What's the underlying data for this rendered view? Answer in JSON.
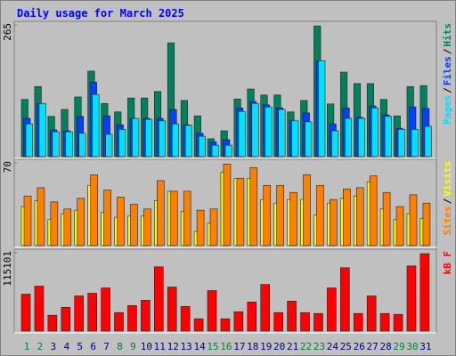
{
  "title": "Daily usage for March 2025",
  "categories": [
    "1",
    "2",
    "3",
    "4",
    "5",
    "6",
    "7",
    "8",
    "9",
    "10",
    "11",
    "12",
    "13",
    "14",
    "15",
    "16",
    "17",
    "18",
    "19",
    "20",
    "21",
    "22",
    "23",
    "24",
    "25",
    "26",
    "27",
    "28",
    "29",
    "30",
    "31"
  ],
  "weekend_days": [
    1,
    2,
    8,
    9,
    15,
    16,
    22,
    23,
    29,
    30
  ],
  "weekend_color": "#008040",
  "weekday_color": "#000080",
  "legend_separator": "/",
  "chart_data": [
    {
      "type": "bar",
      "ylim": [
        0,
        265
      ],
      "yticks": [
        265
      ],
      "series": [
        {
          "name": "Hits",
          "color": "#00805c",
          "values": [
            115,
            141,
            81,
            95,
            120,
            172,
            107,
            90,
            118,
            118,
            131,
            229,
            113,
            82,
            36,
            52,
            116,
            136,
            124,
            124,
            90,
            113,
            263,
            106,
            170,
            147,
            147,
            115,
            82,
            141,
            143
          ]
        },
        {
          "name": "Files",
          "color": "#0040ff",
          "values": [
            77,
            107,
            54,
            52,
            81,
            150,
            82,
            64,
            77,
            77,
            77,
            95,
            64,
            47,
            30,
            34,
            98,
            111,
            104,
            98,
            72,
            88,
            193,
            66,
            98,
            79,
            102,
            84,
            57,
            100,
            97
          ]
        },
        {
          "name": "Pages",
          "color": "#00e0ff",
          "values": [
            66,
            107,
            50,
            50,
            47,
            125,
            45,
            55,
            77,
            75,
            72,
            66,
            63,
            41,
            23,
            23,
            91,
            107,
            100,
            95,
            72,
            70,
            193,
            52,
            77,
            77,
            98,
            81,
            55,
            55,
            61
          ]
        }
      ]
    },
    {
      "type": "bar",
      "ylim": [
        0,
        70
      ],
      "yticks": [
        70
      ],
      "series": [
        {
          "name": "Visits",
          "color": "#ffff00",
          "values": [
            33,
            38,
            22,
            27,
            30,
            51,
            28,
            24,
            25,
            25,
            38,
            46,
            29,
            12,
            19,
            62,
            57,
            57,
            39,
            36,
            39,
            39,
            26,
            36,
            40,
            42,
            54,
            31,
            22,
            27,
            23
          ]
        },
        {
          "name": "Sites",
          "color": "#ff8000",
          "values": [
            42,
            49,
            37,
            31,
            40,
            60,
            47,
            41,
            35,
            31,
            55,
            46,
            46,
            30,
            31,
            69,
            57,
            66,
            51,
            51,
            45,
            60,
            51,
            39,
            48,
            49,
            59,
            45,
            33,
            43,
            36
          ]
        }
      ]
    },
    {
      "type": "bar",
      "ylim": [
        0,
        115101
      ],
      "yticks": [
        115101
      ],
      "series": [
        {
          "name": "kB F",
          "color": "#ff0000",
          "values": [
            54300,
            66000,
            23300,
            34900,
            51700,
            55600,
            63400,
            27200,
            37500,
            45300,
            94400,
            64700,
            36200,
            18100,
            59500,
            18100,
            28400,
            42700,
            68500,
            27200,
            44000,
            27200,
            25900,
            63400,
            93100,
            25900,
            51700,
            25900,
            24600,
            95700,
            113800
          ]
        }
      ]
    }
  ]
}
